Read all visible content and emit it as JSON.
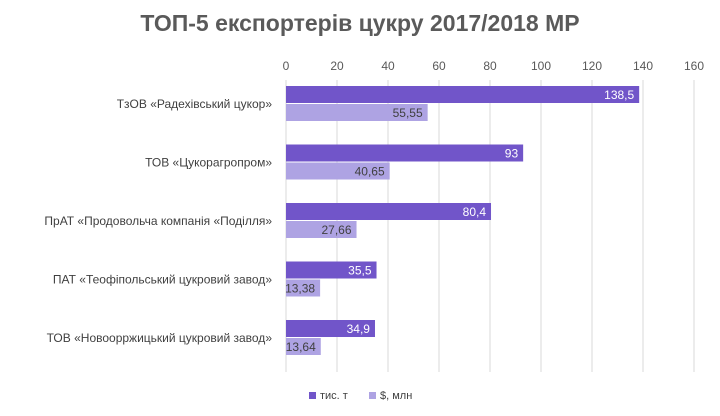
{
  "chart_data": {
    "type": "bar",
    "orientation": "horizontal",
    "title": "ТОП-5 експортерів цукру 2017/2018 МР",
    "categories": [
      "ТзОВ «Радехівський цукор»",
      "ТОВ «Цукорагропром»",
      "ПрАТ «Продовольча компанія «Поділля»",
      "ПАТ «Теофіпольський цукровий завод»",
      "ТОВ «Новоорржицький цукровий завод»"
    ],
    "series": [
      {
        "name": "тис. т",
        "color": "#7155c9",
        "values": [
          138.5,
          93,
          80.4,
          35.5,
          34.9
        ],
        "labels": [
          "138,5",
          "93",
          "80,4",
          "35,5",
          "34,9"
        ]
      },
      {
        "name": "$, млн",
        "color": "#aea3e3",
        "values": [
          55.55,
          40.65,
          27.66,
          13.38,
          13.64
        ],
        "labels": [
          "55,55",
          "40,65",
          "27,66",
          "13,38",
          "13,64"
        ]
      }
    ],
    "xlim": [
      0,
      160
    ],
    "xticks": [
      0,
      20,
      40,
      60,
      80,
      100,
      120,
      140,
      160
    ],
    "axis_position": "top",
    "grid": true,
    "legend": "bottom"
  }
}
